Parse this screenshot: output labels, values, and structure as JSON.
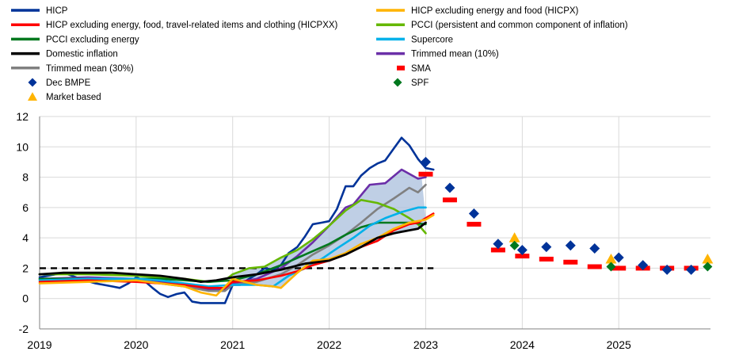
{
  "chart_data": {
    "type": "line",
    "title": "",
    "xlabel": "",
    "ylabel": "",
    "xlim": [
      2019.0,
      2025.95
    ],
    "ylim": [
      -2,
      12
    ],
    "x_ticks": [
      "2019",
      "2020",
      "2021",
      "2022",
      "2023",
      "2024",
      "2025"
    ],
    "y_ticks": [
      "-2",
      "0",
      "2",
      "4",
      "6",
      "8",
      "10",
      "12"
    ],
    "reference_line": {
      "name": "2% target",
      "value": 2,
      "x_range": [
        2019.0,
        2023.08
      ],
      "style": "dashed",
      "color": "#000000"
    },
    "range_band": {
      "name": "Range of underlying inflation measures",
      "color": "#a9bfdc"
    },
    "legend": [
      {
        "label": "HICP",
        "kind": "line",
        "color": "#003399"
      },
      {
        "label": "HICP excluding energy and food (HICPX)",
        "kind": "line",
        "color": "#ffb400"
      },
      {
        "label": "HICP excluding energy, food, travel-related items and clothing (HICPXX)",
        "kind": "line",
        "color": "#ff0000"
      },
      {
        "label": "PCCI (persistent and common component of inflation)",
        "kind": "line",
        "color": "#65b800"
      },
      {
        "label": "PCCI excluding energy",
        "kind": "line",
        "color": "#00781e"
      },
      {
        "label": "Supercore",
        "kind": "line",
        "color": "#00b1ea"
      },
      {
        "label": "Domestic inflation",
        "kind": "line",
        "color": "#000000"
      },
      {
        "label": "Trimmed mean (10%)",
        "kind": "line",
        "color": "#6b2fa8"
      },
      {
        "label": "Trimmed mean (30%)",
        "kind": "line",
        "color": "#808080"
      },
      {
        "label": "SMA",
        "kind": "dash",
        "color": "#ff0000"
      },
      {
        "label": "Dec BMPE",
        "kind": "diamond",
        "color": "#003399"
      },
      {
        "label": "SPF",
        "kind": "diamond",
        "color": "#00781e"
      },
      {
        "label": "Market based",
        "kind": "triangle",
        "color": "#ffb400"
      }
    ],
    "series": [
      {
        "name": "HICP",
        "color": "#003399",
        "width": 2.6,
        "x": [
          2019.0,
          2019.25,
          2019.42,
          2019.58,
          2019.75,
          2019.83,
          2019.92,
          2020.0,
          2020.08,
          2020.17,
          2020.25,
          2020.33,
          2020.42,
          2020.5,
          2020.58,
          2020.67,
          2020.75,
          2020.83,
          2020.92,
          2021.0,
          2021.08,
          2021.17,
          2021.25,
          2021.33,
          2021.42,
          2021.5,
          2021.58,
          2021.67,
          2021.75,
          2021.83,
          2021.92,
          2022.0,
          2022.08,
          2022.17,
          2022.25,
          2022.33,
          2022.42,
          2022.5,
          2022.58,
          2022.67,
          2022.75,
          2022.83,
          2022.92,
          2023.0,
          2023.08
        ],
        "values": [
          1.4,
          1.7,
          1.3,
          1.0,
          0.8,
          0.7,
          1.0,
          1.4,
          1.2,
          0.7,
          0.3,
          0.1,
          0.3,
          0.4,
          -0.2,
          -0.3,
          -0.3,
          -0.3,
          -0.3,
          0.9,
          0.9,
          1.3,
          1.6,
          2.0,
          1.9,
          2.2,
          3.0,
          3.4,
          4.1,
          4.9,
          5.0,
          5.1,
          5.9,
          7.4,
          7.4,
          8.1,
          8.6,
          8.9,
          9.1,
          9.9,
          10.6,
          10.1,
          9.2,
          8.6,
          8.5
        ]
      },
      {
        "name": "Trimmed mean (10%)",
        "color": "#6b2fa8",
        "width": 2.6,
        "x": [
          2019.0,
          2019.5,
          2020.0,
          2020.25,
          2020.5,
          2020.75,
          2020.92,
          2021.0,
          2021.25,
          2021.5,
          2021.67,
          2021.83,
          2022.0,
          2022.17,
          2022.25,
          2022.42,
          2022.58,
          2022.75,
          2022.92,
          2023.0
        ],
        "values": [
          1.3,
          1.4,
          1.3,
          1.1,
          0.9,
          0.6,
          0.6,
          1.0,
          1.3,
          2.0,
          2.8,
          3.7,
          4.8,
          6.0,
          6.2,
          7.5,
          7.6,
          8.5,
          7.9,
          8.0
        ]
      },
      {
        "name": "Trimmed mean (30%)",
        "color": "#808080",
        "width": 2.6,
        "x": [
          2019.0,
          2019.5,
          2020.0,
          2020.25,
          2020.5,
          2020.75,
          2020.92,
          2021.0,
          2021.25,
          2021.5,
          2021.67,
          2021.83,
          2022.0,
          2022.17,
          2022.33,
          2022.5,
          2022.67,
          2022.83,
          2022.92,
          2023.0
        ],
        "values": [
          1.2,
          1.3,
          1.2,
          1.0,
          0.8,
          0.5,
          0.5,
          0.9,
          1.1,
          1.6,
          2.2,
          2.9,
          3.5,
          4.2,
          5.0,
          5.9,
          6.6,
          7.3,
          7.0,
          7.5
        ]
      },
      {
        "name": "PCCI (persistent and common component of inflation)",
        "color": "#65b800",
        "width": 2.6,
        "x": [
          2019.0,
          2019.5,
          2020.0,
          2020.25,
          2020.5,
          2020.75,
          2020.92,
          2021.0,
          2021.17,
          2021.33,
          2021.5,
          2021.67,
          2021.83,
          2022.0,
          2022.17,
          2022.33,
          2022.5,
          2022.67,
          2022.83,
          2022.92,
          2023.0
        ],
        "values": [
          1.6,
          1.6,
          1.5,
          1.4,
          1.3,
          1.1,
          1.2,
          1.6,
          2.0,
          2.1,
          2.7,
          3.2,
          3.9,
          4.8,
          5.8,
          6.5,
          6.3,
          5.9,
          5.3,
          4.9,
          4.3
        ]
      },
      {
        "name": "PCCI excluding energy",
        "color": "#00781e",
        "width": 2.6,
        "x": [
          2019.0,
          2019.5,
          2020.0,
          2020.25,
          2020.5,
          2020.75,
          2021.0,
          2021.25,
          2021.5,
          2021.75,
          2022.0,
          2022.17,
          2022.33,
          2022.5,
          2022.67,
          2022.83,
          2023.0
        ],
        "values": [
          1.3,
          1.3,
          1.3,
          1.3,
          1.2,
          1.1,
          1.2,
          1.6,
          2.2,
          2.9,
          3.6,
          4.2,
          4.7,
          5.0,
          5.0,
          5.0,
          4.9
        ]
      },
      {
        "name": "Supercore",
        "color": "#00b1ea",
        "width": 2.6,
        "x": [
          2019.0,
          2019.5,
          2020.0,
          2020.25,
          2020.5,
          2020.75,
          2021.0,
          2021.25,
          2021.42,
          2021.58,
          2021.75,
          2021.92,
          2022.08,
          2022.25,
          2022.42,
          2022.58,
          2022.75,
          2022.92,
          2023.0
        ],
        "values": [
          1.2,
          1.3,
          1.3,
          1.2,
          1.0,
          0.8,
          0.9,
          0.9,
          0.8,
          1.5,
          2.0,
          2.6,
          3.3,
          4.0,
          4.8,
          5.3,
          5.7,
          6.0,
          6.0
        ]
      },
      {
        "name": "HICP excluding energy, food, travel-related items and clothing (HICPXX)",
        "color": "#ff0000",
        "width": 2.6,
        "x": [
          2019.0,
          2019.5,
          2020.0,
          2020.25,
          2020.5,
          2020.75,
          2020.92,
          2021.0,
          2021.25,
          2021.5,
          2021.67,
          2021.83,
          2022.0,
          2022.17,
          2022.33,
          2022.5,
          2022.67,
          2022.83,
          2022.92,
          2023.0,
          2023.08
        ],
        "values": [
          1.1,
          1.2,
          1.1,
          1.0,
          0.9,
          0.7,
          0.7,
          1.1,
          1.2,
          1.5,
          1.8,
          2.2,
          2.5,
          2.9,
          3.4,
          3.8,
          4.5,
          4.9,
          5.0,
          5.3,
          5.6
        ]
      },
      {
        "name": "HICP excluding energy and food (HICPX)",
        "color": "#ffb400",
        "width": 2.6,
        "x": [
          2019.0,
          2019.5,
          2020.0,
          2020.25,
          2020.5,
          2020.67,
          2020.83,
          2021.0,
          2021.25,
          2021.42,
          2021.5,
          2021.67,
          2021.83,
          2022.0,
          2022.17,
          2022.33,
          2022.5,
          2022.67,
          2022.83,
          2023.0,
          2023.08
        ],
        "values": [
          1.0,
          1.1,
          1.2,
          1.0,
          0.8,
          0.4,
          0.2,
          1.3,
          0.9,
          0.8,
          0.7,
          1.7,
          2.5,
          2.6,
          3.0,
          3.6,
          4.0,
          4.6,
          5.0,
          5.2,
          5.5
        ]
      },
      {
        "name": "Domestic inflation",
        "color": "#000000",
        "width": 2.8,
        "x": [
          2019.0,
          2019.25,
          2019.5,
          2019.75,
          2020.0,
          2020.25,
          2020.5,
          2020.67,
          2020.83,
          2021.0,
          2021.25,
          2021.5,
          2021.75,
          2022.0,
          2022.17,
          2022.33,
          2022.5,
          2022.67,
          2022.83,
          2022.92,
          2023.0
        ],
        "values": [
          1.6,
          1.7,
          1.7,
          1.7,
          1.6,
          1.5,
          1.3,
          1.1,
          1.2,
          1.4,
          1.6,
          1.9,
          2.3,
          2.5,
          2.9,
          3.4,
          4.0,
          4.3,
          4.5,
          4.6,
          5.0
        ]
      }
    ],
    "sma": {
      "name": "SMA",
      "color": "#ff0000",
      "x": [
        2023.0,
        2023.25,
        2023.5,
        2023.75,
        2024.0,
        2024.25,
        2024.5,
        2024.75,
        2025.0,
        2025.25,
        2025.5,
        2025.75
      ],
      "values": [
        8.2,
        6.5,
        4.9,
        3.2,
        2.8,
        2.6,
        2.4,
        2.1,
        2.0,
        2.0,
        2.0,
        2.0
      ]
    },
    "dec_bmpe": {
      "name": "Dec BMPE",
      "color": "#003399",
      "x": [
        2023.0,
        2023.25,
        2023.5,
        2023.75,
        2024.0,
        2024.25,
        2024.5,
        2024.75,
        2025.0,
        2025.25,
        2025.5,
        2025.75
      ],
      "values": [
        9.0,
        7.3,
        5.6,
        3.6,
        3.2,
        3.4,
        3.5,
        3.3,
        2.7,
        2.2,
        1.9,
        1.9
      ]
    },
    "spf": {
      "name": "SPF",
      "color": "#00781e",
      "x": [
        2023.92,
        2024.92,
        2025.92
      ],
      "values": [
        3.5,
        2.1,
        2.1
      ]
    },
    "market_based": {
      "name": "Market based",
      "color": "#ffb400",
      "x": [
        2023.92,
        2024.92,
        2025.92
      ],
      "values": [
        4.0,
        2.6,
        2.6
      ]
    }
  }
}
